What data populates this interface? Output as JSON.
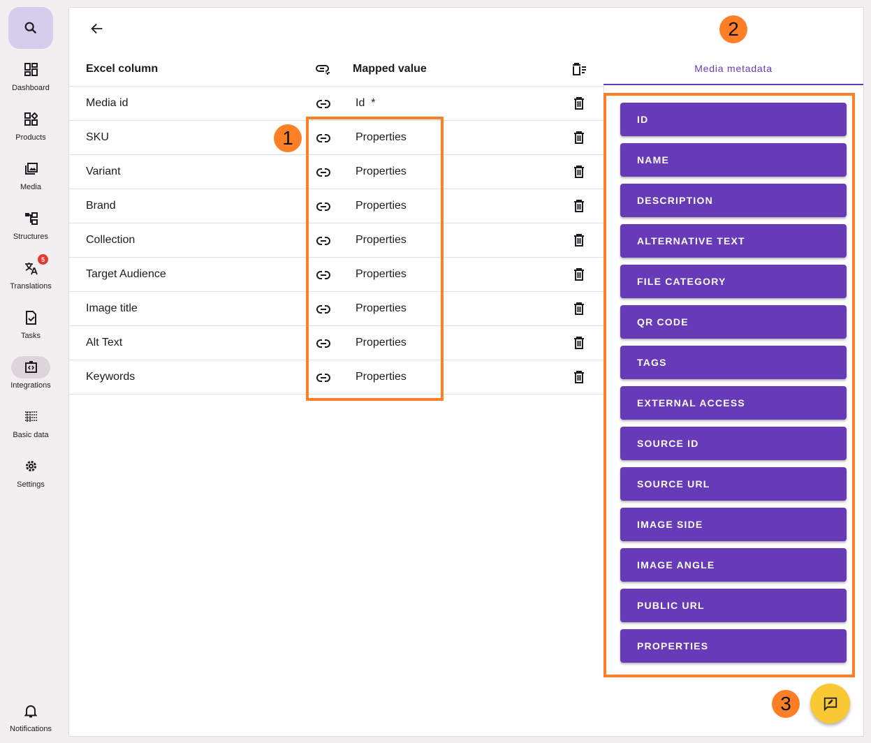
{
  "sidebar": {
    "items": [
      {
        "label": "Dashboard",
        "icon": "dashboard-icon"
      },
      {
        "label": "Products",
        "icon": "products-icon"
      },
      {
        "label": "Media",
        "icon": "media-icon"
      },
      {
        "label": "Structures",
        "icon": "structures-icon"
      },
      {
        "label": "Translations",
        "icon": "translate-icon",
        "badge": "5"
      },
      {
        "label": "Tasks",
        "icon": "tasks-icon"
      },
      {
        "label": "Integrations",
        "icon": "integrations-icon",
        "active": true
      },
      {
        "label": "Basic data",
        "icon": "basic-data-icon"
      },
      {
        "label": "Settings",
        "icon": "gear-icon"
      }
    ],
    "notifications": "Notifications"
  },
  "table": {
    "headers": {
      "excel": "Excel column",
      "mapped": "Mapped value"
    },
    "rows": [
      {
        "excel": "Media id",
        "mapped": "Id  *"
      },
      {
        "excel": "SKU",
        "mapped": "Properties"
      },
      {
        "excel": "Variant",
        "mapped": "Properties"
      },
      {
        "excel": "Brand",
        "mapped": "Properties"
      },
      {
        "excel": "Collection",
        "mapped": "Properties"
      },
      {
        "excel": "Target Audience",
        "mapped": "Properties"
      },
      {
        "excel": "Image title",
        "mapped": "Properties"
      },
      {
        "excel": "Alt Text",
        "mapped": "Properties"
      },
      {
        "excel": "Keywords",
        "mapped": "Properties"
      }
    ]
  },
  "panel": {
    "tab": "Media metadata",
    "buttons": [
      "ID",
      "NAME",
      "DESCRIPTION",
      "ALTERNATIVE TEXT",
      "FILE CATEGORY",
      "QR CODE",
      "TAGS",
      "EXTERNAL ACCESS",
      "SOURCE ID",
      "SOURCE URL",
      "IMAGE SIDE",
      "IMAGE ANGLE",
      "PUBLIC URL",
      "PROPERTIES"
    ]
  },
  "annotations": [
    "1",
    "2",
    "3"
  ],
  "colors": {
    "accent": "#673ab7",
    "annotation": "#ff7f27",
    "fab": "#f9c933"
  }
}
